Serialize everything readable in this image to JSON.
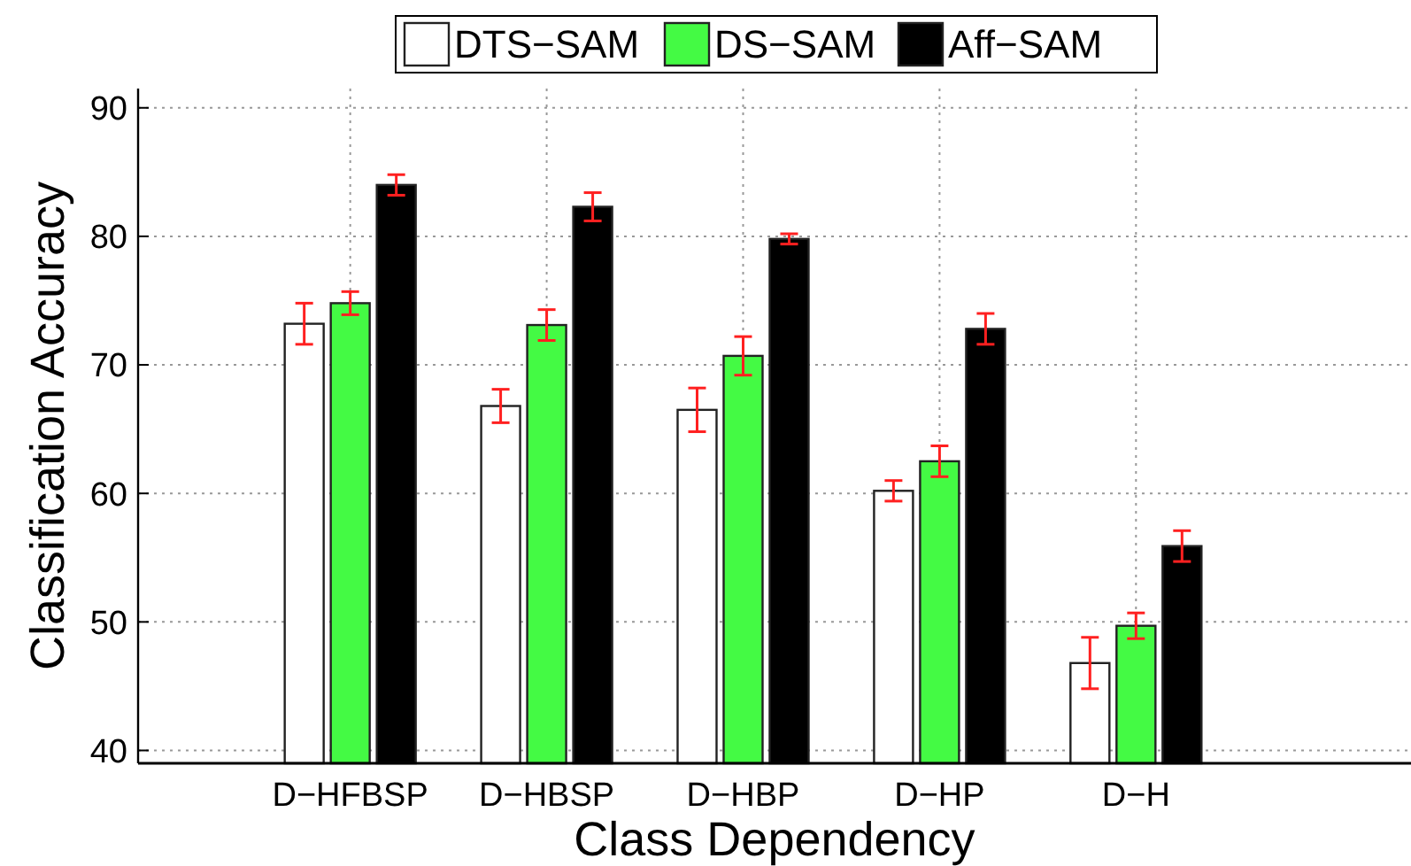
{
  "chart_data": {
    "type": "bar",
    "xlabel": "Class Dependency",
    "ylabel": "Classification Accuracy",
    "categories": [
      "D−HFBSP",
      "D−HBSP",
      "D−HBP",
      "D−HP",
      "D−H"
    ],
    "series": [
      {
        "name": "DTS−SAM",
        "color": "#ffffff",
        "values": [
          73.2,
          66.8,
          66.5,
          60.2,
          46.8
        ],
        "errors": [
          1.6,
          1.3,
          1.7,
          0.8,
          2.0
        ]
      },
      {
        "name": "DS−SAM",
        "color": "#44fa44",
        "values": [
          74.8,
          73.1,
          70.7,
          62.5,
          49.7
        ],
        "errors": [
          0.9,
          1.2,
          1.5,
          1.2,
          1.0
        ]
      },
      {
        "name": "Aff−SAM",
        "color": "#000000",
        "values": [
          84.0,
          82.3,
          79.8,
          72.8,
          55.9
        ],
        "errors": [
          0.8,
          1.1,
          0.4,
          1.2,
          1.2
        ]
      }
    ],
    "ylim": [
      39,
      91.5
    ],
    "yticks": [
      40,
      50,
      60,
      70,
      80,
      90
    ],
    "grid": true,
    "legend": "top"
  }
}
